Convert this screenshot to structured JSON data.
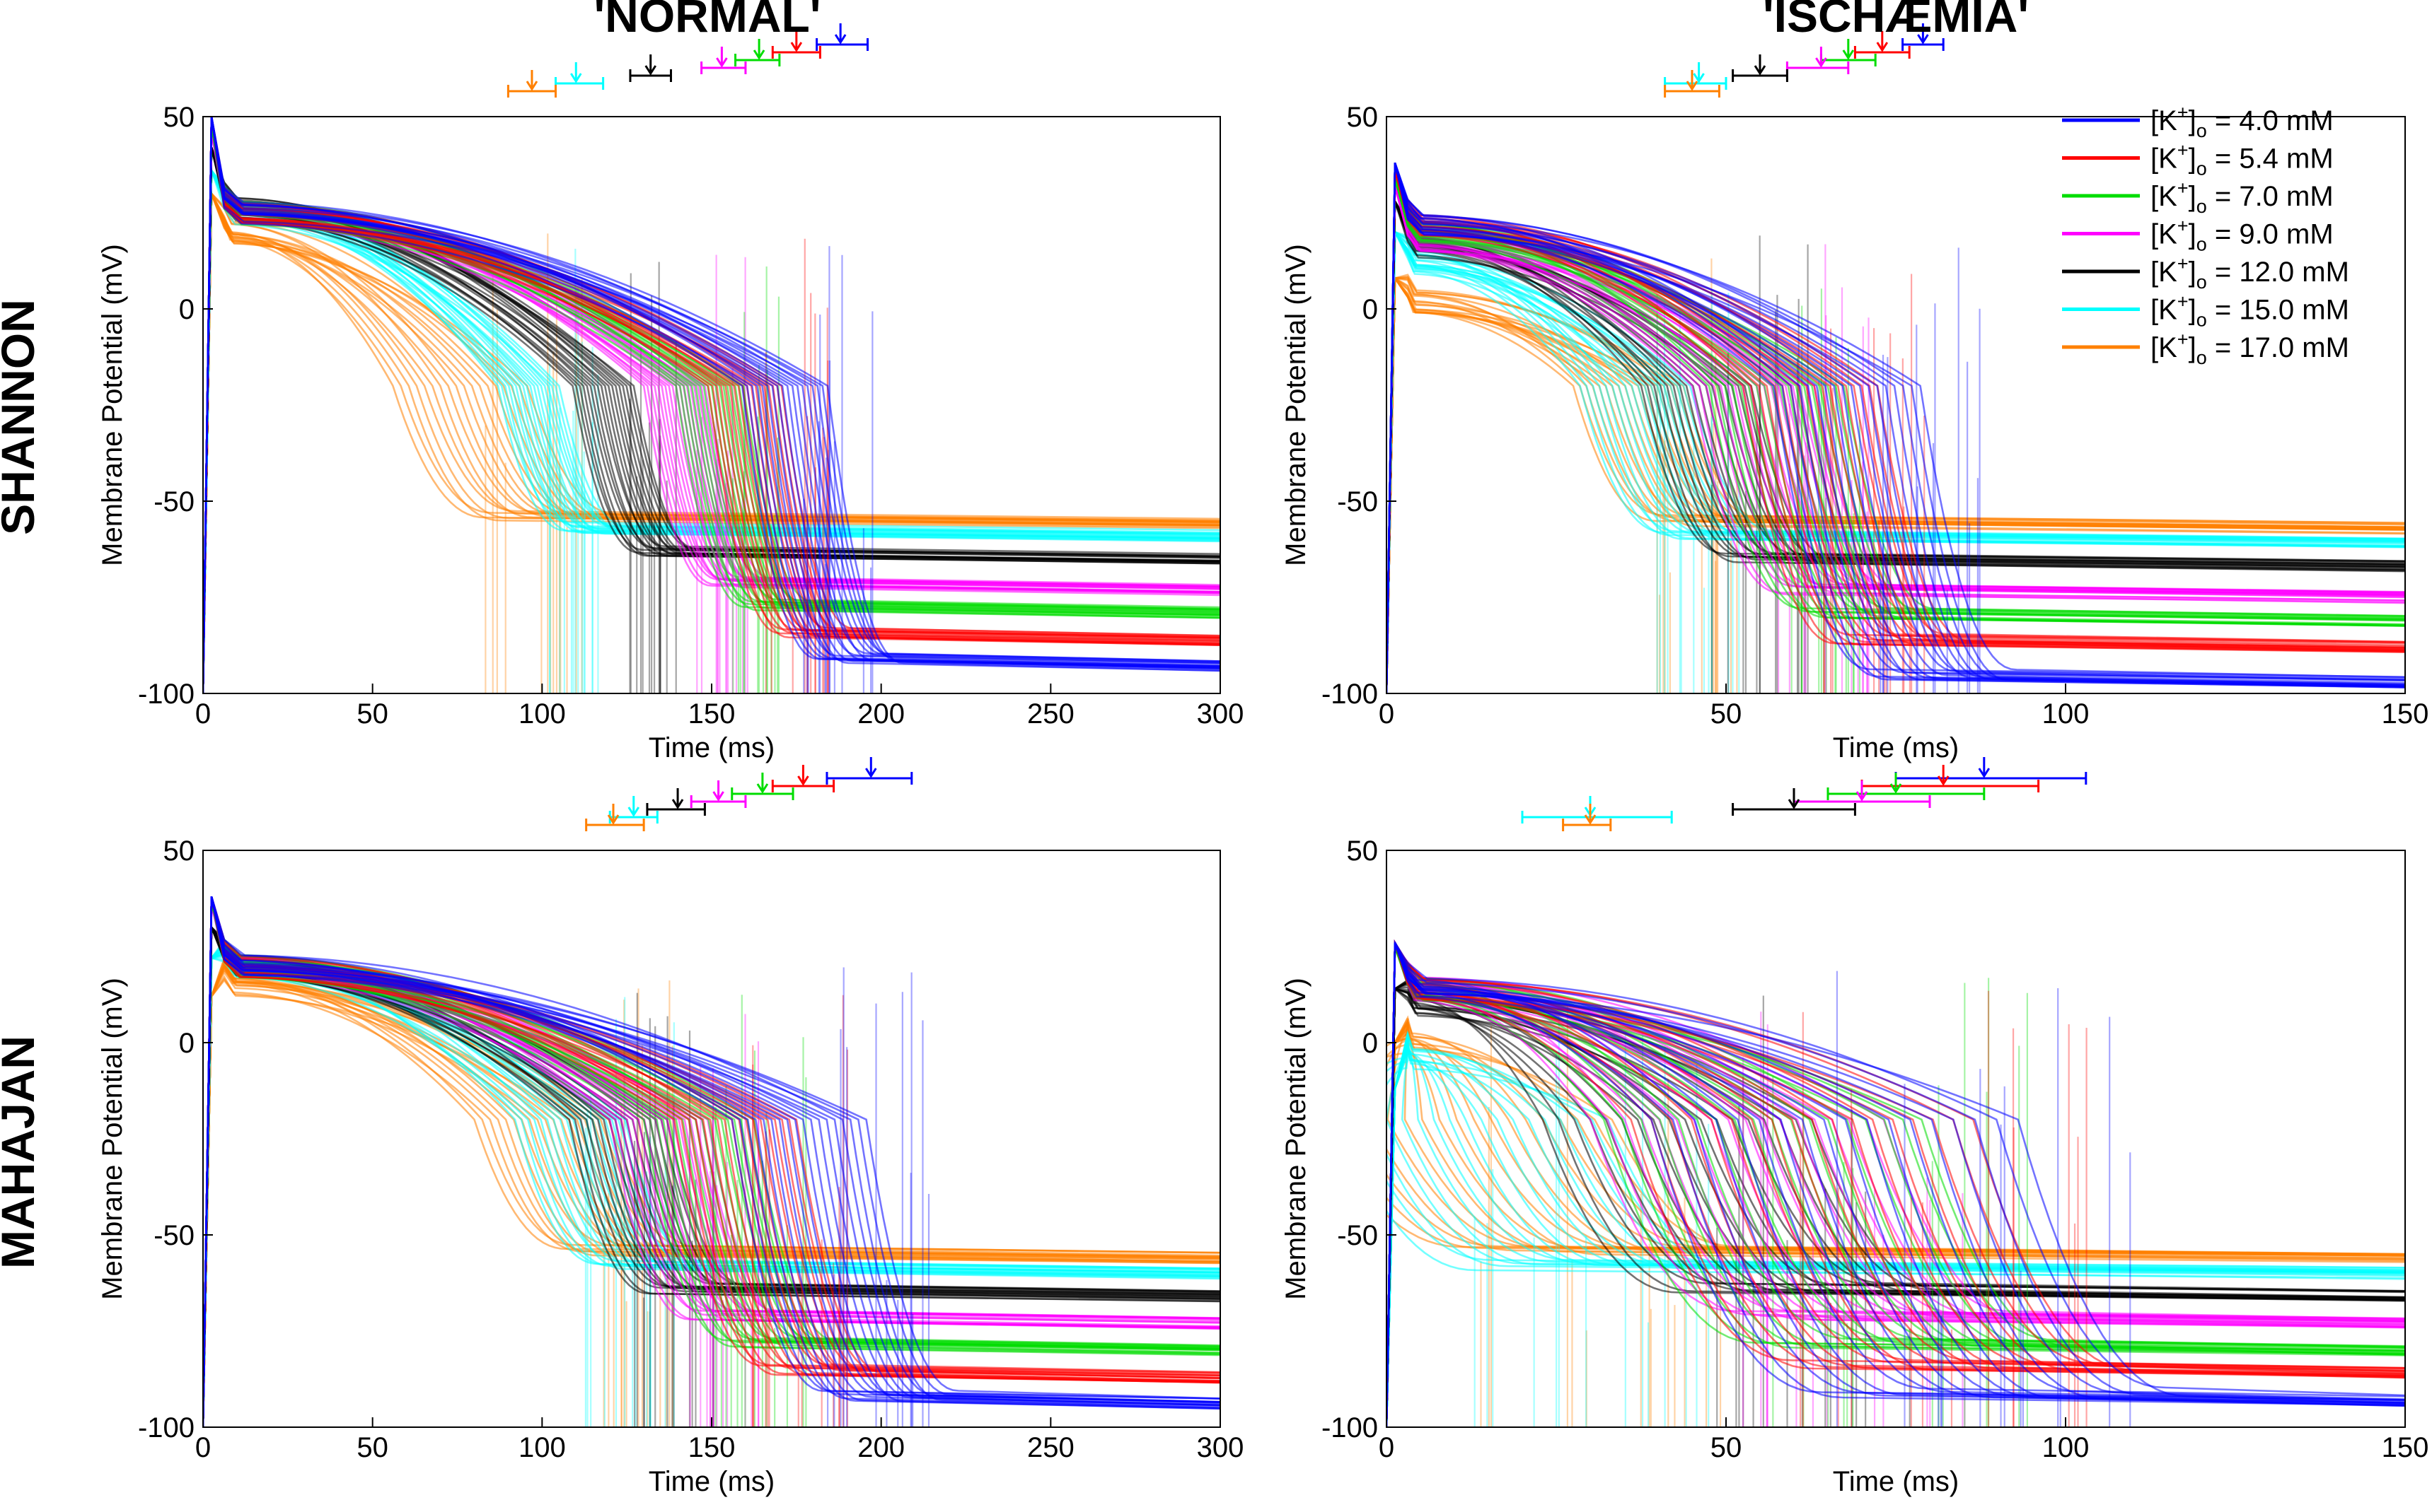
{
  "figure": {
    "column_titles": [
      "'NORMAL'",
      "'ISCHÆMIA'"
    ],
    "row_titles": [
      "SHANNON",
      "MAHAJAN"
    ]
  },
  "legend": {
    "placement": "top-right of top-right panel",
    "entries": [
      {
        "label": "[K+]o = 4.0 mM",
        "k": "4.0",
        "color": "#0000ff"
      },
      {
        "label": "[K+]o = 5.4 mM",
        "k": "5.4",
        "color": "#ff0000"
      },
      {
        "label": "[K+]o = 7.0 mM",
        "k": "7.0",
        "color": "#00dd00"
      },
      {
        "label": "[K+]o = 9.0 mM",
        "k": "9.0",
        "color": "#ff00ff"
      },
      {
        "label": "[K+]o = 12.0 mM",
        "k": "12.0",
        "color": "#000000"
      },
      {
        "label": "[K+]o = 15.0 mM",
        "k": "15.0",
        "color": "#00ffff"
      },
      {
        "label": "[K+]o = 17.0 mM",
        "k": "17.0",
        "color": "#ff8000"
      }
    ]
  },
  "chart_data": [
    {
      "type": "line",
      "row": "SHANNON",
      "column": "'NORMAL'",
      "xlabel": "Time (ms)",
      "ylabel": "Membrane Potential (mV)",
      "xlim": [
        0,
        300
      ],
      "ylim": [
        -100,
        50
      ],
      "xticks": [
        "0",
        "50",
        "100",
        "150",
        "200",
        "250",
        "300"
      ],
      "yticks": [
        "-100",
        "-50",
        "0",
        "50"
      ],
      "series": [
        {
          "k": "4.0",
          "color": "#0000ff",
          "rest": -93,
          "plateau": 25,
          "upstroke_peak": 50,
          "apd90_mean": 188,
          "apd90_range": [
            181,
            196
          ],
          "repol_spread": 14
        },
        {
          "k": "5.4",
          "color": "#ff0000",
          "rest": -86,
          "plateau": 25,
          "upstroke_peak": 50,
          "apd90_mean": 175,
          "apd90_range": [
            168,
            182
          ],
          "repol_spread": 12
        },
        {
          "k": "7.0",
          "color": "#00dd00",
          "rest": -79,
          "plateau": 25,
          "upstroke_peak": 48,
          "apd90_mean": 164,
          "apd90_range": [
            157,
            170
          ],
          "repol_spread": 11
        },
        {
          "k": "9.0",
          "color": "#ff00ff",
          "rest": -73,
          "plateau": 25,
          "upstroke_peak": 46,
          "apd90_mean": 153,
          "apd90_range": [
            147,
            160
          ],
          "repol_spread": 10
        },
        {
          "k": "12.0",
          "color": "#000000",
          "rest": -65,
          "plateau": 26,
          "upstroke_peak": 42,
          "apd90_mean": 132,
          "apd90_range": [
            126,
            138
          ],
          "repol_spread": 10
        },
        {
          "k": "15.0",
          "color": "#00ffff",
          "rest": -59,
          "plateau": 25,
          "upstroke_peak": 36,
          "apd90_mean": 110,
          "apd90_range": [
            104,
            118
          ],
          "repol_spread": 10
        },
        {
          "k": "17.0",
          "color": "#ff8000",
          "rest": -56,
          "plateau": 20,
          "upstroke_peak": 30,
          "apd90_mean": 97,
          "apd90_range": [
            90,
            104
          ],
          "repol_spread": 22
        }
      ]
    },
    {
      "type": "line",
      "row": "SHANNON",
      "column": "'ISCHÆMIA'",
      "xlabel": "Time (ms)",
      "ylabel": "Membrane Potential (mV)",
      "xlim": [
        0,
        150
      ],
      "ylim": [
        -100,
        50
      ],
      "xticks": [
        "0",
        "50",
        "100",
        "150"
      ],
      "yticks": [
        "-100",
        "-50",
        "0",
        "50"
      ],
      "series": [
        {
          "k": "4.0",
          "color": "#0000ff",
          "rest": -97,
          "plateau": 22,
          "upstroke_peak": 38,
          "apd90_mean": 79,
          "apd90_range": [
            76,
            82
          ],
          "repol_spread": 12
        },
        {
          "k": "5.4",
          "color": "#ff0000",
          "rest": -88,
          "plateau": 22,
          "upstroke_peak": 36,
          "apd90_mean": 73,
          "apd90_range": [
            69,
            77
          ],
          "repol_spread": 11
        },
        {
          "k": "7.0",
          "color": "#00dd00",
          "rest": -81,
          "plateau": 20,
          "upstroke_peak": 34,
          "apd90_mean": 68,
          "apd90_range": [
            64,
            72
          ],
          "repol_spread": 11
        },
        {
          "k": "9.0",
          "color": "#ff00ff",
          "rest": -75,
          "plateau": 18,
          "upstroke_peak": 32,
          "apd90_mean": 64,
          "apd90_range": [
            59,
            68
          ],
          "repol_spread": 10
        },
        {
          "k": "12.0",
          "color": "#000000",
          "rest": -67,
          "plateau": 16,
          "upstroke_peak": 28,
          "apd90_mean": 55,
          "apd90_range": [
            51,
            59
          ],
          "repol_spread": 9
        },
        {
          "k": "15.0",
          "color": "#00ffff",
          "rest": -61,
          "plateau": 12,
          "upstroke_peak": 20,
          "apd90_mean": 46,
          "apd90_range": [
            41,
            50
          ],
          "repol_spread": 9
        },
        {
          "k": "17.0",
          "color": "#ff8000",
          "rest": -57,
          "plateau": 2,
          "upstroke_peak": 8,
          "apd90_mean": 45,
          "apd90_range": [
            41,
            49
          ],
          "repol_spread": 9
        }
      ]
    },
    {
      "type": "line",
      "row": "MAHAJAN",
      "column": "'NORMAL'",
      "xlabel": "Time (ms)",
      "ylabel": "Membrane Potential (mV)",
      "xlim": [
        0,
        300
      ],
      "ylim": [
        -100,
        50
      ],
      "xticks": [
        "0",
        "50",
        "100",
        "150",
        "200",
        "250",
        "300"
      ],
      "yticks": [
        "-100",
        "-50",
        "0",
        "50"
      ],
      "series": [
        {
          "k": "4.0",
          "color": "#0000ff",
          "rest": -94,
          "plateau": 20,
          "upstroke_peak": 38,
          "apd90_mean": 197,
          "apd90_range": [
            184,
            209
          ],
          "repol_spread": 22
        },
        {
          "k": "5.4",
          "color": "#ff0000",
          "rest": -87,
          "plateau": 20,
          "upstroke_peak": 38,
          "apd90_mean": 177,
          "apd90_range": [
            168,
            186
          ],
          "repol_spread": 20
        },
        {
          "k": "7.0",
          "color": "#00dd00",
          "rest": -80,
          "plateau": 20,
          "upstroke_peak": 37,
          "apd90_mean": 165,
          "apd90_range": [
            156,
            174
          ],
          "repol_spread": 18
        },
        {
          "k": "9.0",
          "color": "#ff00ff",
          "rest": -73,
          "plateau": 20,
          "upstroke_peak": 36,
          "apd90_mean": 152,
          "apd90_range": [
            144,
            160
          ],
          "repol_spread": 16
        },
        {
          "k": "12.0",
          "color": "#000000",
          "rest": -66,
          "plateau": 20,
          "upstroke_peak": 30,
          "apd90_mean": 140,
          "apd90_range": [
            131,
            148
          ],
          "repol_spread": 16
        },
        {
          "k": "15.0",
          "color": "#00ffff",
          "rest": -60,
          "plateau": 20,
          "upstroke_peak": 22,
          "apd90_mean": 127,
          "apd90_range": [
            120,
            134
          ],
          "repol_spread": 18
        },
        {
          "k": "17.0",
          "color": "#ff8000",
          "rest": -56,
          "plateau": 15,
          "upstroke_peak": 12,
          "apd90_mean": 121,
          "apd90_range": [
            113,
            130
          ],
          "repol_spread": 22
        }
      ]
    },
    {
      "type": "line",
      "row": "MAHAJAN",
      "column": "'ISCHÆMIA'",
      "xlabel": "Time (ms)",
      "ylabel": "Membrane Potential (mV)",
      "xlim": [
        0,
        150
      ],
      "ylim": [
        -100,
        50
      ],
      "xticks": [
        "0",
        "50",
        "100",
        "150"
      ],
      "yticks": [
        "-100",
        "-50",
        "0",
        "50"
      ],
      "series": [
        {
          "k": "4.0",
          "color": "#0000ff",
          "rest": -93,
          "plateau": 14,
          "upstroke_peak": 26,
          "apd90_mean": 88,
          "apd90_range": [
            75,
            103
          ],
          "repol_spread": 30
        },
        {
          "k": "5.4",
          "color": "#ff0000",
          "rest": -86,
          "plateau": 14,
          "upstroke_peak": 26,
          "apd90_mean": 82,
          "apd90_range": [
            70,
            96
          ],
          "repol_spread": 28
        },
        {
          "k": "7.0",
          "color": "#00dd00",
          "rest": -80,
          "plateau": 14,
          "upstroke_peak": 25,
          "apd90_mean": 75,
          "apd90_range": [
            65,
            88
          ],
          "repol_spread": 26
        },
        {
          "k": "9.0",
          "color": "#ff00ff",
          "rest": -73,
          "plateau": 14,
          "upstroke_peak": 25,
          "apd90_mean": 70,
          "apd90_range": [
            60,
            80
          ],
          "repol_spread": 24
        },
        {
          "k": "12.0",
          "color": "#000000",
          "rest": -66,
          "plateau": 10,
          "upstroke_peak": 14,
          "apd90_mean": 60,
          "apd90_range": [
            51,
            69
          ],
          "repol_spread": 22
        },
        {
          "k": "15.0",
          "color": "#00ffff",
          "rest": -60,
          "plateau": -4,
          "upstroke_peak": -12,
          "apd90_mean": 30,
          "apd90_range": [
            20,
            42
          ],
          "repol_spread": 22
        },
        {
          "k": "17.0",
          "color": "#ff8000",
          "rest": -56,
          "plateau": 0,
          "upstroke_peak": 0,
          "apd90_mean": 30,
          "apd90_range": [
            26,
            33
          ],
          "repol_spread": 24
        }
      ]
    }
  ]
}
